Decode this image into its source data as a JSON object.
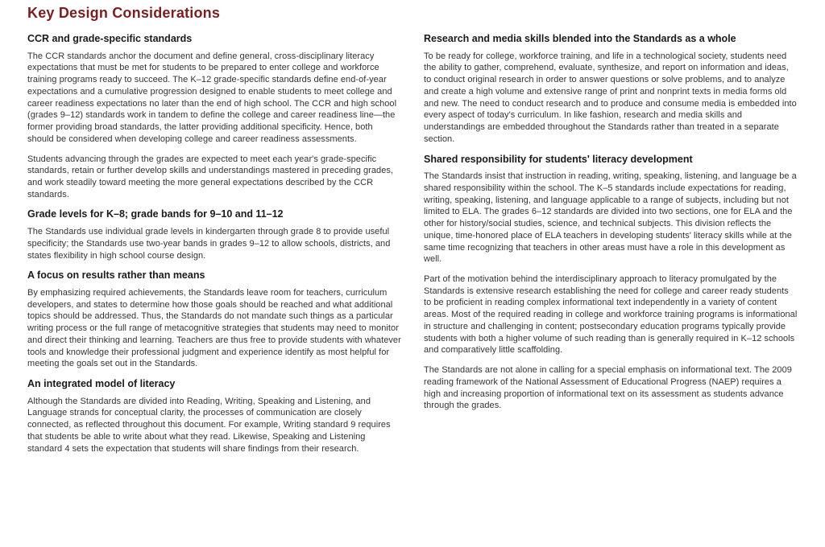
{
  "page": {
    "title": "Key Design Considerations"
  },
  "left": {
    "s1": {
      "head": "CCR and grade-specific standards",
      "p1": "The CCR standards anchor the document and define general, cross-disciplinary literacy expectations that must be met for students to be prepared to enter college and workforce training programs ready to succeed. The K–12 grade-specific standards define end-of-year expectations and a cumulative progression designed to enable students to meet college and career readiness expectations no later than the end of high school. The CCR and high school (grades 9–12) standards work in tandem to define the college and career readiness line—the former providing broad standards, the latter providing additional specificity. Hence, both should be considered when developing college and career readiness assessments.",
      "p2": "Students advancing through the grades are expected to meet each year's grade-specific standards, retain or further develop skills and understandings mastered in preceding grades, and work steadily toward meeting the more general expectations described by the CCR standards."
    },
    "s2": {
      "head": "Grade levels for K–8; grade bands for 9–10 and 11–12",
      "p1": "The Standards use individual grade levels in kindergarten through grade 8 to provide useful specificity; the Standards use two-year bands in grades 9–12 to allow schools, districts, and states flexibility in high school course design."
    },
    "s3": {
      "head": "A focus on results rather than means",
      "p1": "By emphasizing required achievements, the Standards leave room for teachers, curriculum developers, and states to determine how those goals should be reached and what additional topics should be addressed. Thus, the Standards do not mandate such things as a particular writing process or the full range of metacognitive strategies that students may need to monitor and direct their thinking and learning. Teachers are thus free to provide students with whatever tools and knowledge their professional judgment and experience identify as most helpful for meeting the goals set out in the Standards."
    },
    "s4": {
      "head": "An integrated model of literacy",
      "p1": "Although the Standards are divided into Reading, Writing, Speaking and Listening, and Language strands for conceptual clarity, the processes of communication are closely connected, as reflected throughout this document. For example, Writing standard 9 requires that students be able to write about what they read. Likewise, Speaking and Listening standard 4 sets the expectation that students will share findings from their research."
    }
  },
  "right": {
    "s1": {
      "head": "Research and media skills blended into the Standards as a whole",
      "p1": "To be ready for college, workforce training, and life in a technological society, students need the ability to gather, comprehend, evaluate, synthesize, and report on information and ideas, to conduct original research in order to answer questions or solve problems, and to analyze and create a high volume and extensive range of print and nonprint texts in media forms old and new. The need to conduct research and to produce and consume media is embedded into every aspect of today's curriculum. In like fashion, research and media skills and understandings are embedded throughout the Standards rather than treated in a separate section."
    },
    "s2": {
      "head": "Shared responsibility for students' literacy development",
      "p1": "The Standards insist that instruction in reading, writing, speaking, listening, and language be a shared responsibility within the school. The K–5 standards include expectations for reading, writing, speaking, listening, and language applicable to a range of subjects, including but not limited to ELA. The grades 6–12 standards are divided into two sections, one for ELA and the other for history/social studies, science, and technical subjects. This division reflects the unique, time-honored place of ELA teachers in developing students' literacy skills while at the same time recognizing that teachers in other areas must have a role in this development as well.",
      "p2": "Part of the motivation behind the interdisciplinary approach to literacy promulgated by the Standards is extensive research establishing the need for college and career ready students to be proficient in reading complex informational text independently in a variety of content areas. Most of the required reading in college and workforce training programs is informational in structure and challenging in content; postsecondary education programs typically provide students with both a higher volume of such reading than is generally required in K–12 schools and comparatively little scaffolding.",
      "p3": "The Standards are not alone in calling for a special emphasis on informational text. The 2009 reading framework of the National Assessment of Educational Progress (NAEP) requires a high and increasing proportion of informational text on its assessment as students advance through the grades."
    }
  }
}
